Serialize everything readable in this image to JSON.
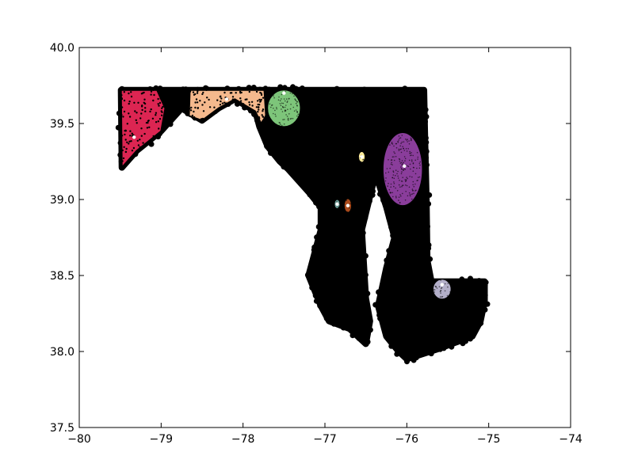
{
  "chart_data": {
    "type": "scatter",
    "title": "",
    "xlabel": "",
    "ylabel": "",
    "xlim": [
      -80,
      -74
    ],
    "ylim": [
      37.5,
      40.0
    ],
    "xticks": [
      -80,
      -79,
      -78,
      -77,
      -76,
      -75,
      -74
    ],
    "yticks": [
      37.5,
      38.0,
      38.5,
      39.0,
      39.5,
      40.0
    ],
    "xtick_labels": [
      "−80",
      "−79",
      "−78",
      "−77",
      "−76",
      "−75",
      "−74"
    ],
    "ytick_labels": [
      "37.5",
      "38.0",
      "38.5",
      "39.0",
      "39.5",
      "40.0"
    ],
    "grid": false,
    "legend": "none",
    "background_points": {
      "color": "#000000",
      "region_outline": [
        [
          -79.49,
          39.72
        ],
        [
          -75.79,
          39.72
        ],
        [
          -75.78,
          39.45
        ],
        [
          -75.76,
          39.0
        ],
        [
          -75.75,
          38.6
        ],
        [
          -75.7,
          38.46
        ],
        [
          -75.05,
          38.46
        ],
        [
          -75.05,
          38.33
        ],
        [
          -75.1,
          38.2
        ],
        [
          -75.2,
          38.1
        ],
        [
          -75.6,
          38.02
        ],
        [
          -76.0,
          37.95
        ],
        [
          -76.1,
          38.0
        ],
        [
          -76.25,
          38.1
        ],
        [
          -76.35,
          38.3
        ],
        [
          -76.25,
          38.55
        ],
        [
          -76.15,
          38.75
        ],
        [
          -76.25,
          38.95
        ],
        [
          -76.4,
          39.2
        ],
        [
          -76.3,
          39.35
        ],
        [
          -76.55,
          38.8
        ],
        [
          -76.5,
          38.35
        ],
        [
          -76.45,
          38.2
        ],
        [
          -76.5,
          38.05
        ],
        [
          -76.7,
          38.15
        ],
        [
          -76.95,
          38.2
        ],
        [
          -77.05,
          38.3
        ],
        [
          -77.2,
          38.5
        ],
        [
          -77.05,
          38.8
        ],
        [
          -77.05,
          38.95
        ],
        [
          -77.2,
          39.05
        ],
        [
          -77.45,
          39.2
        ],
        [
          -77.55,
          39.25
        ],
        [
          -77.7,
          39.35
        ],
        [
          -77.8,
          39.48
        ],
        [
          -77.85,
          39.58
        ],
        [
          -78.1,
          39.66
        ],
        [
          -78.3,
          39.6
        ],
        [
          -78.5,
          39.52
        ],
        [
          -78.75,
          39.6
        ],
        [
          -79.0,
          39.45
        ],
        [
          -79.3,
          39.32
        ],
        [
          -79.48,
          39.21
        ]
      ]
    },
    "clusters": [
      {
        "color": "#dc2552",
        "centroid": [
          -79.33,
          39.41
        ],
        "polygon": [
          [
            -79.49,
            39.72
          ],
          [
            -79.05,
            39.72
          ],
          [
            -78.95,
            39.6
          ],
          [
            -79.0,
            39.45
          ],
          [
            -79.3,
            39.32
          ],
          [
            -79.48,
            39.21
          ]
        ]
      },
      {
        "color": "#f5b98d",
        "centroid": [
          -78.2,
          39.66
        ],
        "polygon": [
          [
            -78.65,
            39.72
          ],
          [
            -77.74,
            39.72
          ],
          [
            -77.72,
            39.55
          ],
          [
            -77.78,
            39.5
          ],
          [
            -77.85,
            39.58
          ],
          [
            -78.1,
            39.66
          ],
          [
            -78.3,
            39.6
          ],
          [
            -78.5,
            39.52
          ],
          [
            -78.66,
            39.55
          ]
        ]
      },
      {
        "color": "#7dc57a",
        "centroid": [
          -77.5,
          39.7
        ],
        "ellipse": {
          "cx": -77.5,
          "cy": 39.6,
          "rx": 0.2,
          "ry": 0.12
        }
      },
      {
        "color": "#ffed9b",
        "centroid": [
          -76.55,
          39.28
        ],
        "ellipse": {
          "cx": -76.55,
          "cy": 39.28,
          "rx": 0.04,
          "ry": 0.035
        }
      },
      {
        "color": "#8a3d9b",
        "centroid": [
          -76.03,
          39.22
        ],
        "ellipse": {
          "cx": -76.05,
          "cy": 39.2,
          "rx": 0.24,
          "ry": 0.24
        }
      },
      {
        "color": "#6b9c96",
        "centroid": [
          -76.85,
          38.97
        ],
        "ellipse": {
          "cx": -76.85,
          "cy": 38.97,
          "rx": 0.035,
          "ry": 0.03
        }
      },
      {
        "color": "#aa4a1b",
        "centroid": [
          -76.72,
          38.96
        ],
        "ellipse": {
          "cx": -76.72,
          "cy": 38.96,
          "rx": 0.045,
          "ry": 0.045
        }
      },
      {
        "color": "#b3afc9",
        "centroid": [
          -75.57,
          38.44
        ],
        "ellipse": {
          "cx": -75.57,
          "cy": 38.41,
          "rx": 0.11,
          "ry": 0.065
        }
      }
    ]
  }
}
